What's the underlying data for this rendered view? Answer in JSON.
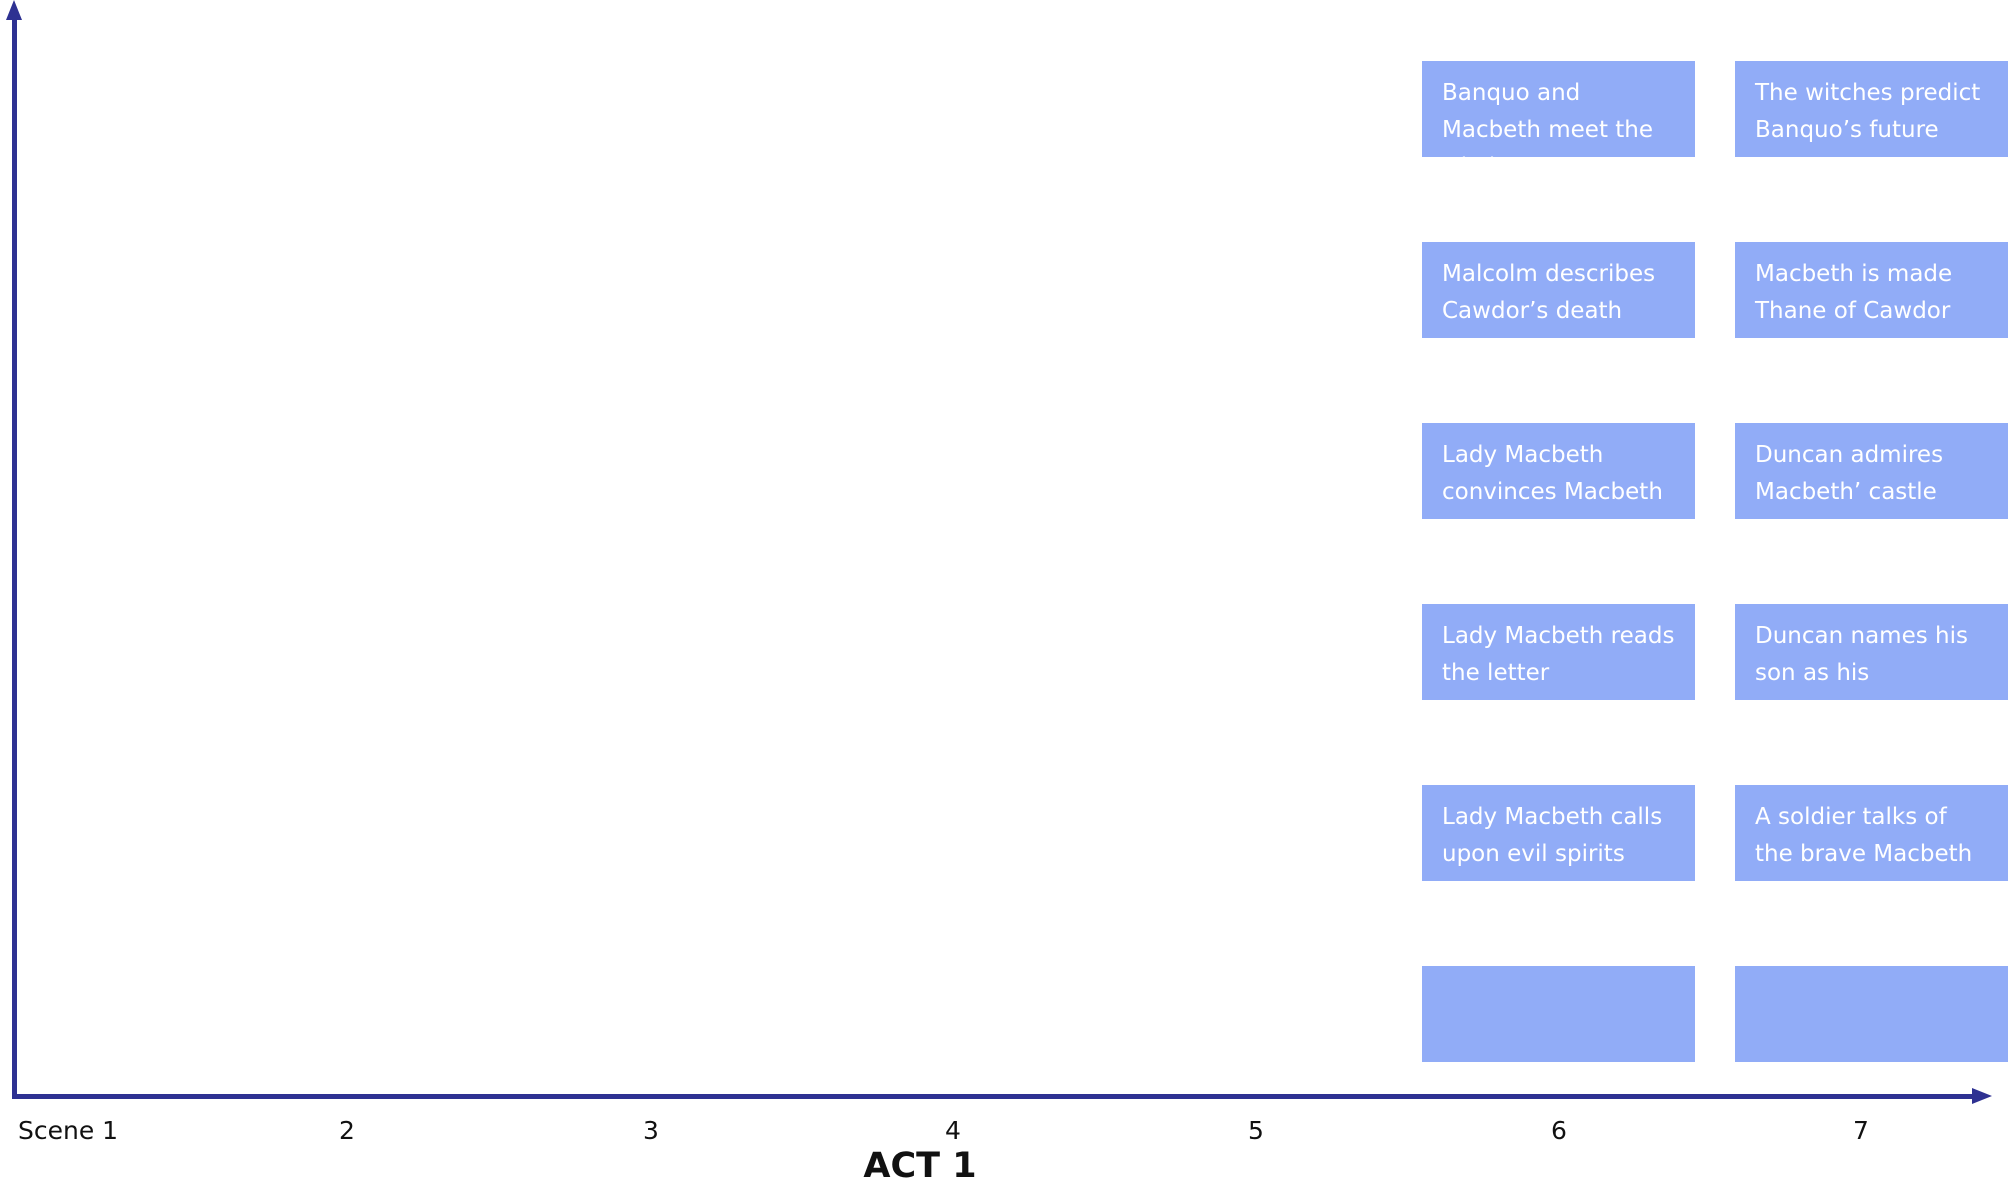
{
  "axis": {
    "x_ticks": [
      "Scene  1",
      "2",
      "3",
      "4",
      "5",
      "6",
      "7"
    ],
    "x_title": "ACT 1"
  },
  "colors": {
    "axis": "#2e3192",
    "card": "#91acf7",
    "card_text": "#ffffff",
    "label": "#111111"
  },
  "columns": [
    {
      "scene": "6",
      "cards": [
        "Banquo and Macbeth meet the witches",
        "Malcolm describes Cawdor’s death",
        "Lady Macbeth convinces Macbeth",
        "Lady Macbeth reads the letter",
        "Lady Macbeth calls upon evil spirits",
        ""
      ]
    },
    {
      "scene": "7",
      "cards": [
        "The witches predict Banquo’s future",
        "Macbeth is made Thane of Cawdor",
        "Duncan admires Macbeth’ castle",
        "Duncan names his son as his successor",
        "A soldier talks of the brave Macbeth",
        ""
      ]
    }
  ]
}
